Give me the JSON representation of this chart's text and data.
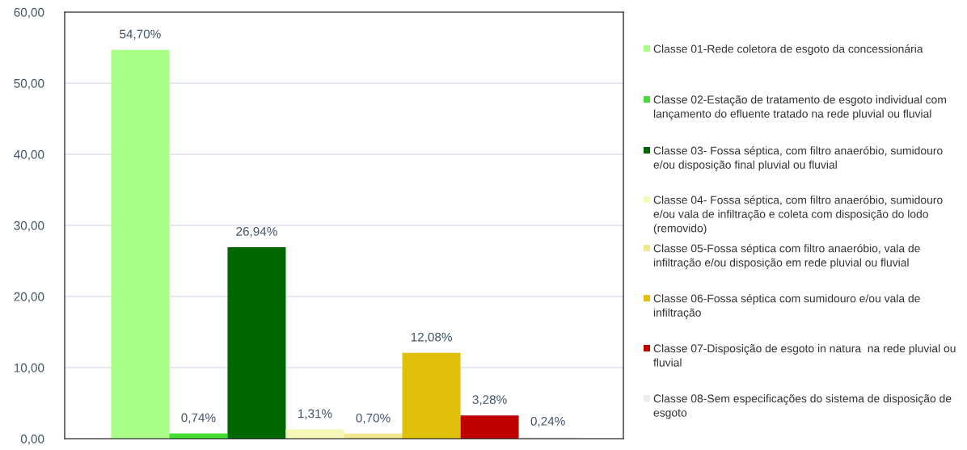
{
  "chart_data": {
    "type": "bar",
    "categories": [
      null
    ],
    "series": [
      {
        "name": "Classe 01-Rede coletora de esgoto da concessionária",
        "color": "#aaff88",
        "values": [
          54.7
        ],
        "value_labels": [
          "54,70%"
        ]
      },
      {
        "name": "Classe 02-Estação de tratamento de esgoto individual com lançamento do efluente tratado na rede pluvial ou fluvial",
        "color": "#44dd33",
        "values": [
          0.74
        ],
        "value_labels": [
          "0,74%"
        ]
      },
      {
        "name": "Classe 03- Fossa séptica, com filtro anaeróbio, sumidouro e/ou disposição final pluvial ou fluvial",
        "color": "#006600",
        "values": [
          26.94
        ],
        "value_labels": [
          "26,94%"
        ]
      },
      {
        "name": "Classe 04- Fossa séptica, com filtro anaeróbio, sumidouro e/ou vala de infiltração e coleta com disposição do lodo (removido)",
        "color": "#f6f8b8",
        "values": [
          1.31
        ],
        "value_labels": [
          "1,31%"
        ]
      },
      {
        "name": "Classe 05-Fossa séptica com filtro anaeróbio, vala de infiltração e/ou disposição em rede pluvial ou fluvial",
        "color": "#f0e68c",
        "values": [
          0.7
        ],
        "value_labels": [
          "0,70%"
        ]
      },
      {
        "name": "Classe 06-Fossa séptica com sumidouro e/ou vala de infiltração",
        "color": "#e0c00a",
        "values": [
          12.08
        ],
        "value_labels": [
          "12,08%"
        ]
      },
      {
        "name": "Classe 07-Disposição de esgoto in natura  na rede pluvial ou fluvial",
        "color": "#c00000",
        "values": [
          3.28
        ],
        "value_labels": [
          "3,28%"
        ]
      },
      {
        "name": "Classe 08-Sem especificações do sistema de disposição de esgoto",
        "color": "#ececec",
        "values": [
          0.24
        ],
        "value_labels": [
          "0,24%"
        ]
      }
    ],
    "ylim": [
      0,
      60
    ],
    "yticks": [
      {
        "value": 0,
        "label": "0,00"
      },
      {
        "value": 10,
        "label": "10,00"
      },
      {
        "value": 20,
        "label": "20,00"
      },
      {
        "value": 30,
        "label": "30,00"
      },
      {
        "value": 40,
        "label": "40,00"
      },
      {
        "value": 50,
        "label": "50,00"
      },
      {
        "value": 60,
        "label": "60,00"
      }
    ],
    "grid": "y",
    "legend": "right"
  }
}
